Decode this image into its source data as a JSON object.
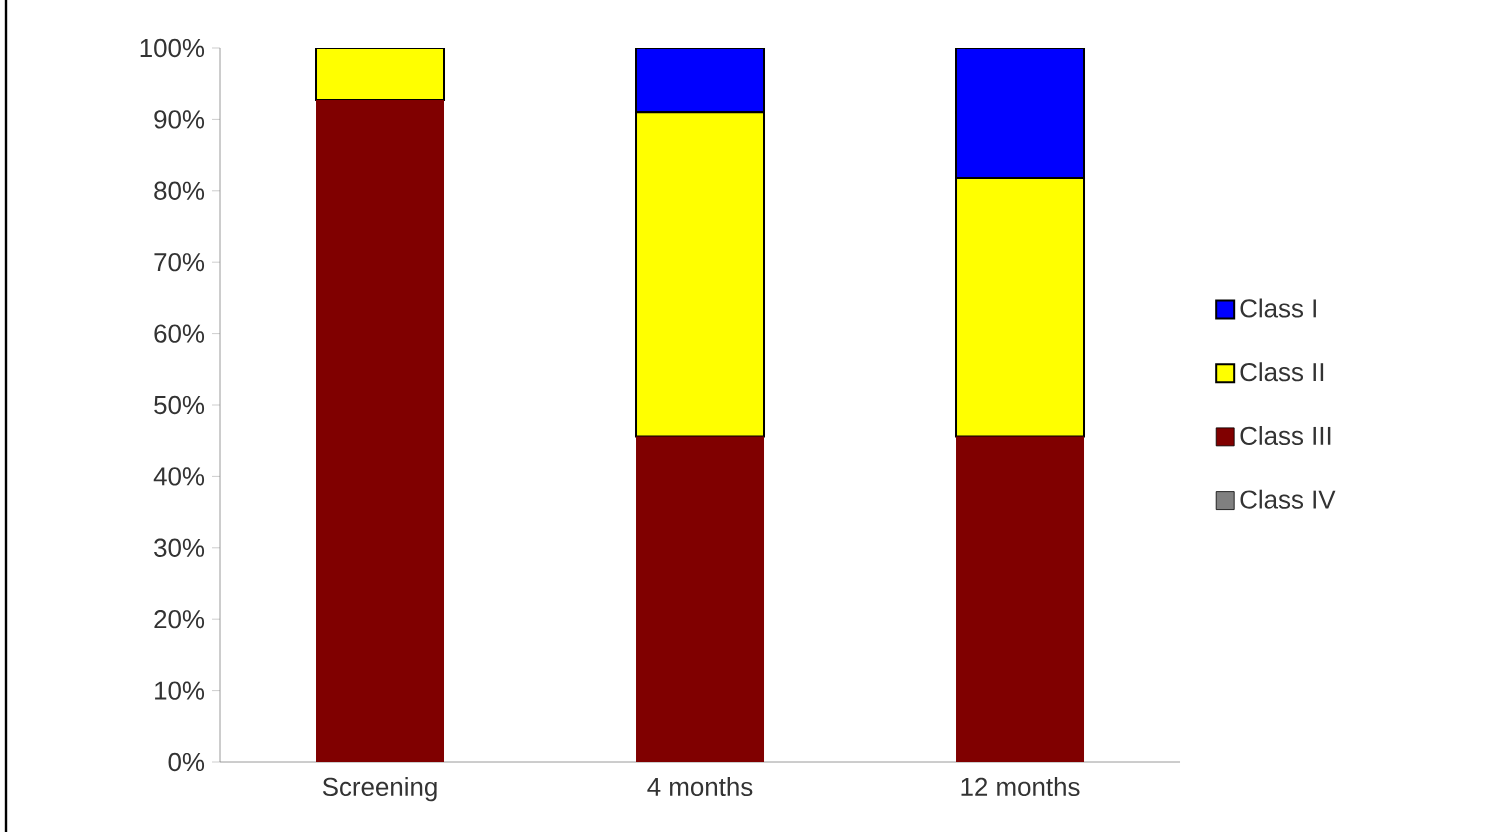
{
  "chart_data": {
    "type": "bar",
    "stacked": true,
    "categories": [
      "Screening",
      "4 months",
      "12 months"
    ],
    "series": [
      {
        "name": "Class IV",
        "color": "#808080",
        "values": [
          0,
          0,
          0
        ]
      },
      {
        "name": "Class III",
        "color": "#800000",
        "values": [
          92.7,
          45.6,
          45.6
        ]
      },
      {
        "name": "Class II",
        "color": "#ffff00",
        "values": [
          7.3,
          45.4,
          36.2
        ]
      },
      {
        "name": "Class I",
        "color": "#0000ff",
        "values": [
          0,
          9.0,
          18.2
        ]
      }
    ],
    "ylim": [
      0,
      100
    ],
    "yticks": [
      {
        "value": 0,
        "label": "0%"
      },
      {
        "value": 10,
        "label": "10%"
      },
      {
        "value": 20,
        "label": "20%"
      },
      {
        "value": 30,
        "label": "30%"
      },
      {
        "value": 40,
        "label": "40%"
      },
      {
        "value": 50,
        "label": "50%"
      },
      {
        "value": 60,
        "label": "60%"
      },
      {
        "value": 70,
        "label": "70%"
      },
      {
        "value": 80,
        "label": "80%"
      },
      {
        "value": 90,
        "label": "90%"
      },
      {
        "value": 100,
        "label": "100%"
      }
    ],
    "grid": false,
    "legend": "right"
  }
}
